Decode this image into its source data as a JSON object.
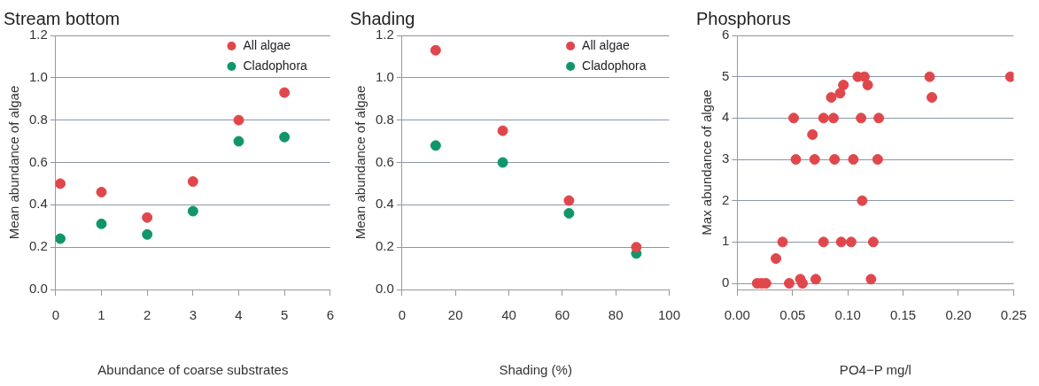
{
  "chart_data": [
    {
      "type": "scatter",
      "title": "Stream bottom",
      "xlabel": "Abundance of coarse substrates",
      "ylabel": "Mean abundance of algae",
      "xlim": [
        0,
        6
      ],
      "xticks": [
        0,
        1,
        2,
        3,
        4,
        5,
        6
      ],
      "ylim": [
        0,
        1.2
      ],
      "yticks": [
        {
          "value": 0,
          "label": "0.0"
        },
        {
          "value": 0.2,
          "label": "0.2"
        },
        {
          "value": 0.4,
          "label": "0.4"
        },
        {
          "value": 0.6,
          "label": "0.6"
        },
        {
          "value": 0.8,
          "label": "0.8"
        },
        {
          "value": 1,
          "label": "1.0"
        },
        {
          "value": 1.2,
          "label": "1.2"
        }
      ],
      "grid": "y",
      "legend": "top right",
      "marker": "circle",
      "series": [
        {
          "name": "All algae",
          "color": "#e0474c",
          "x": [
            0.1,
            1,
            2,
            3,
            4,
            5
          ],
          "values": [
            0.5,
            0.46,
            0.34,
            0.51,
            0.8,
            0.93
          ]
        },
        {
          "name": "Cladophora",
          "color": "#12956b",
          "x": [
            0.1,
            1,
            2,
            3,
            4,
            5
          ],
          "values": [
            0.24,
            0.31,
            0.26,
            0.37,
            0.7,
            0.72
          ]
        }
      ]
    },
    {
      "type": "scatter",
      "title": "Shading",
      "xlabel": "Shading (%)",
      "ylabel": "Mean abundance of algae",
      "xlim": [
        0,
        100
      ],
      "xticks": [
        0,
        20,
        40,
        60,
        80,
        100
      ],
      "ylim": [
        0,
        1.2
      ],
      "yticks": [
        {
          "value": 0,
          "label": "0.0"
        },
        {
          "value": 0.2,
          "label": "0.2"
        },
        {
          "value": 0.4,
          "label": "0.4"
        },
        {
          "value": 0.6,
          "label": "0.6"
        },
        {
          "value": 0.8,
          "label": "0.8"
        },
        {
          "value": 1,
          "label": "1.0"
        },
        {
          "value": 1.2,
          "label": "1.2"
        }
      ],
      "grid": "y",
      "legend": "top right",
      "marker": "circle",
      "series": [
        {
          "name": "All algae",
          "color": "#e0474c",
          "x": [
            12.6,
            37.7,
            62.5,
            87.7
          ],
          "values": [
            1.13,
            0.75,
            0.42,
            0.2
          ]
        },
        {
          "name": "Cladophora",
          "color": "#12956b",
          "x": [
            12.6,
            37.7,
            62.5,
            87.7
          ],
          "values": [
            0.68,
            0.6,
            0.36,
            0.17
          ]
        }
      ]
    },
    {
      "type": "scatter",
      "title": "Phosphorus",
      "xlabel": "PO4−P mg/l",
      "ylabel": "Max abundance of algae",
      "xlim": [
        0,
        0.25
      ],
      "xticks": [
        {
          "value": 0,
          "label": "0.00"
        },
        {
          "value": 0.05,
          "label": "0.05"
        },
        {
          "value": 0.1,
          "label": "0.10"
        },
        {
          "value": 0.15,
          "label": "0.15"
        },
        {
          "value": 0.2,
          "label": "0.20"
        },
        {
          "value": 0.25,
          "label": "0.25"
        }
      ],
      "ylim": [
        -0.15,
        6
      ],
      "yticks": [
        0,
        1,
        2,
        3,
        4,
        5,
        6
      ],
      "grid": "y",
      "marker": "circle",
      "series": [
        {
          "color": "#e0474c",
          "x": [
            0.018,
            0.022,
            0.026,
            0.047,
            0.059,
            0.057,
            0.071,
            0.121,
            0.035,
            0.041,
            0.078,
            0.094,
            0.103,
            0.123,
            0.113,
            0.053,
            0.07,
            0.088,
            0.105,
            0.127,
            0.068,
            0.051,
            0.078,
            0.087,
            0.112,
            0.128,
            0.085,
            0.176,
            0.093,
            0.096,
            0.118,
            0.109,
            0.115,
            0.174,
            0.247
          ],
          "values": [
            0,
            0,
            0,
            0,
            0,
            0.1,
            0.1,
            0.1,
            0.6,
            1,
            1,
            1,
            1,
            1,
            2,
            3,
            3,
            3,
            3,
            3,
            3.6,
            4,
            4,
            4,
            4,
            4,
            4.5,
            4.5,
            4.6,
            4.8,
            4.8,
            5,
            5,
            5,
            5
          ]
        }
      ]
    }
  ]
}
